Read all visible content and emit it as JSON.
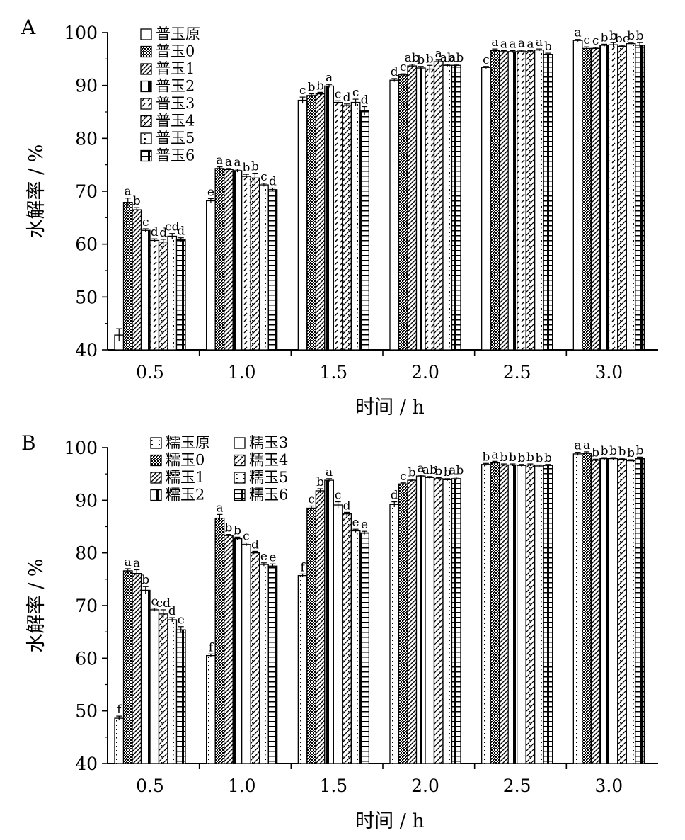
{
  "chart_data": [
    {
      "panel": "A",
      "type": "bar",
      "xlabel": "时间 / h",
      "ylabel": "水解率 / %",
      "ylim": [
        40,
        100
      ],
      "yticks": [
        "40",
        "50",
        "60",
        "70",
        "80",
        "90",
        "100"
      ],
      "categories": [
        "0.5",
        "1.0",
        "1.5",
        "2.0",
        "2.5",
        "3.0"
      ],
      "legend_position": "top-left",
      "legend_columns": 1,
      "series": [
        {
          "name": "普玉原",
          "pattern": "blank-icon",
          "values": [
            42.8,
            68.2,
            87.2,
            91.0,
            93.4,
            98.5
          ],
          "errors": [
            1.2,
            0.4,
            0.6,
            0.3,
            0.2,
            0.2
          ],
          "labels": [
            "",
            "e",
            "c",
            "d",
            "c",
            "a"
          ]
        },
        {
          "name": "普玉0",
          "pattern": "crosshatch-icon",
          "values": [
            67.9,
            74.3,
            88.1,
            92.0,
            96.6,
            97.0
          ],
          "errors": [
            0.8,
            0.3,
            0.3,
            0.2,
            0.3,
            0.3
          ],
          "labels": [
            "a",
            "a",
            "b",
            "c",
            "a",
            "c"
          ]
        },
        {
          "name": "普玉1",
          "pattern": "diagonal-icon",
          "values": [
            66.5,
            74.1,
            88.4,
            93.7,
            96.4,
            97.0
          ],
          "errors": [
            0.4,
            0.2,
            0.3,
            0.3,
            0.2,
            0.2
          ],
          "labels": [
            "b",
            "a",
            "b",
            "ab",
            "a",
            "c"
          ]
        },
        {
          "name": "普玉2",
          "pattern": "vertical-icon",
          "values": [
            62.6,
            73.9,
            89.9,
            93.3,
            96.4,
            97.6
          ],
          "errors": [
            0.3,
            0.3,
            0.3,
            0.3,
            0.2,
            0.2
          ],
          "labels": [
            "c",
            "a",
            "a",
            "b",
            "a",
            "b"
          ]
        },
        {
          "name": "普玉3",
          "pattern": "dash-icon",
          "values": [
            60.7,
            72.8,
            86.8,
            93.1,
            96.5,
            97.7
          ],
          "errors": [
            0.3,
            0.4,
            0.3,
            0.7,
            0.2,
            0.4
          ],
          "labels": [
            "d",
            "b",
            "c",
            "b",
            "a",
            "b"
          ]
        },
        {
          "name": "普玉4",
          "pattern": "checker-icon",
          "values": [
            60.4,
            72.5,
            86.2,
            94.5,
            96.4,
            97.4
          ],
          "errors": [
            0.5,
            0.9,
            0.3,
            0.3,
            0.2,
            0.2
          ],
          "labels": [
            "d",
            "b",
            "d",
            "a",
            "a",
            "bc"
          ]
        },
        {
          "name": "普玉5",
          "pattern": "dot-icon",
          "values": [
            61.5,
            71.2,
            86.8,
            93.8,
            96.7,
            97.9
          ],
          "errors": [
            0.5,
            0.3,
            0.6,
            0.2,
            0.2,
            0.2
          ],
          "labels": [
            "cd",
            "c",
            "c",
            "ab",
            "a",
            "b"
          ]
        },
        {
          "name": "普玉6",
          "pattern": "grid-icon",
          "values": [
            60.8,
            70.3,
            85.2,
            93.8,
            95.9,
            97.6
          ],
          "errors": [
            0.4,
            0.3,
            0.8,
            0.2,
            0.2,
            0.5
          ],
          "labels": [
            "d",
            "d",
            "d",
            "ab",
            "b",
            "b"
          ]
        }
      ]
    },
    {
      "panel": "B",
      "type": "bar",
      "xlabel": "时间 / h",
      "ylabel": "水解率 / %",
      "ylim": [
        40,
        100
      ],
      "yticks": [
        "40",
        "50",
        "60",
        "70",
        "80",
        "90",
        "100"
      ],
      "categories": [
        "0.5",
        "1.0",
        "1.5",
        "2.0",
        "2.5",
        "3.0"
      ],
      "legend_position": "top-left",
      "legend_columns": 2,
      "series": [
        {
          "name": "糯玉原",
          "pattern": "dot-icon",
          "values": [
            48.6,
            60.5,
            75.7,
            89.2,
            96.8,
            98.8
          ],
          "errors": [
            0.4,
            0.3,
            0.3,
            0.5,
            0.2,
            0.3
          ],
          "labels": [
            "f",
            "f",
            "f",
            "d",
            "b",
            "a"
          ]
        },
        {
          "name": "糯玉0",
          "pattern": "crosshatch-icon",
          "values": [
            76.6,
            86.6,
            88.5,
            93.1,
            97.1,
            98.9
          ],
          "errors": [
            0.4,
            0.7,
            0.4,
            0.2,
            0.3,
            0.3
          ],
          "labels": [
            "a",
            "a",
            "c",
            "c",
            "a",
            "a"
          ]
        },
        {
          "name": "糯玉1",
          "pattern": "diagonal-icon",
          "values": [
            76.1,
            83.3,
            91.8,
            93.8,
            96.7,
            97.6
          ],
          "errors": [
            0.7,
            0.2,
            0.4,
            0.2,
            0.2,
            0.2
          ],
          "labels": [
            "a",
            "b",
            "b",
            "b",
            "b",
            "b"
          ]
        },
        {
          "name": "糯玉2",
          "pattern": "vertical-icon",
          "values": [
            72.9,
            82.7,
            93.8,
            94.6,
            96.7,
            97.9
          ],
          "errors": [
            0.7,
            0.3,
            0.3,
            0.2,
            0.2,
            0.2
          ],
          "labels": [
            "b",
            "b",
            "a",
            "a",
            "b",
            "b"
          ]
        },
        {
          "name": "糯玉3",
          "pattern": "blank-icon",
          "values": [
            69.2,
            81.6,
            89.1,
            94.3,
            96.6,
            97.9
          ],
          "errors": [
            0.3,
            0.3,
            0.6,
            0.2,
            0.2,
            0.2
          ],
          "labels": [
            "c",
            "c",
            "c",
            "ab",
            "b",
            "b"
          ]
        },
        {
          "name": "糯玉4",
          "pattern": "checker-icon",
          "values": [
            68.4,
            80.0,
            87.4,
            94.1,
            96.7,
            97.8
          ],
          "errors": [
            0.8,
            0.3,
            0.3,
            0.2,
            0.2,
            0.2
          ],
          "labels": [
            "cd",
            "d",
            "d",
            "b",
            "b",
            "b"
          ]
        },
        {
          "name": "糯玉5",
          "pattern": "dot-icon",
          "values": [
            67.3,
            77.8,
            84.2,
            93.9,
            96.5,
            97.5
          ],
          "errors": [
            0.4,
            0.3,
            0.3,
            0.2,
            0.2,
            0.2
          ],
          "labels": [
            "d",
            "e",
            "e",
            "b",
            "b",
            "b"
          ]
        },
        {
          "name": "糯玉6",
          "pattern": "grid-icon",
          "values": [
            65.4,
            77.5,
            83.8,
            94.1,
            96.6,
            97.9
          ],
          "errors": [
            0.6,
            0.4,
            0.3,
            0.3,
            0.2,
            0.3
          ],
          "labels": [
            "e",
            "e",
            "e",
            "ab",
            "b",
            "b"
          ]
        }
      ]
    }
  ]
}
